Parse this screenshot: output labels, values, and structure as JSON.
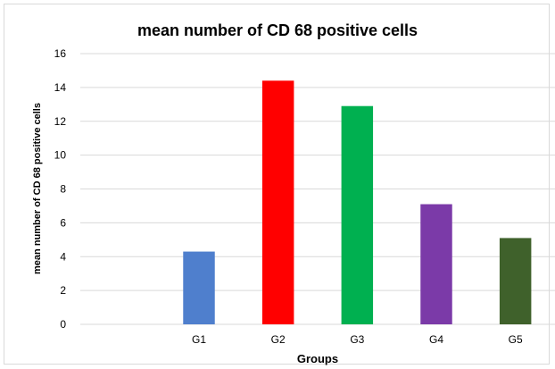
{
  "chart_data": {
    "type": "bar",
    "title": "mean number of CD 68 positive cells",
    "xlabel": "Groups",
    "ylabel": "mean number of CD 68  positive cells",
    "categories": [
      "",
      "G1",
      "G2",
      "G3",
      "G4",
      "G5"
    ],
    "values": [
      null,
      4.3,
      14.4,
      12.9,
      7.1,
      5.1
    ],
    "colors": [
      "#ffffff",
      "#4f7fcd",
      "#ff0000",
      "#00b050",
      "#7b3aa8",
      "#3f612b"
    ],
    "ylim": [
      0,
      16
    ],
    "yticks": [
      0,
      2,
      4,
      6,
      8,
      10,
      12,
      14,
      16
    ],
    "grid": true,
    "legend": "none"
  }
}
